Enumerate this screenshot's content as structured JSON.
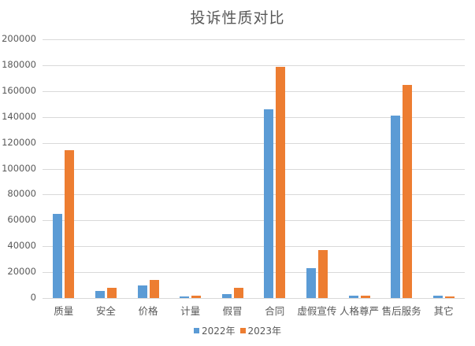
{
  "chart_data": {
    "type": "bar",
    "title": "投诉性质对比",
    "xlabel": "",
    "ylabel": "",
    "ylim": [
      0,
      200000
    ],
    "yticks": [
      0,
      20000,
      40000,
      60000,
      80000,
      100000,
      120000,
      140000,
      160000,
      180000,
      200000
    ],
    "grid": true,
    "legend_position": "bottom",
    "categories": [
      "质量",
      "安全",
      "价格",
      "计量",
      "假冒",
      "合同",
      "虚假宣传",
      "人格尊严",
      "售后服务",
      "其它"
    ],
    "series": [
      {
        "name": "2022年",
        "color": "#5b9bd5",
        "values": [
          65000,
          5700,
          10000,
          1200,
          3200,
          146000,
          23300,
          1800,
          140800,
          2000
        ]
      },
      {
        "name": "2023年",
        "color": "#ed7d31",
        "values": [
          114500,
          8100,
          14200,
          2000,
          8100,
          179000,
          37300,
          1800,
          165000,
          1300
        ]
      }
    ]
  }
}
